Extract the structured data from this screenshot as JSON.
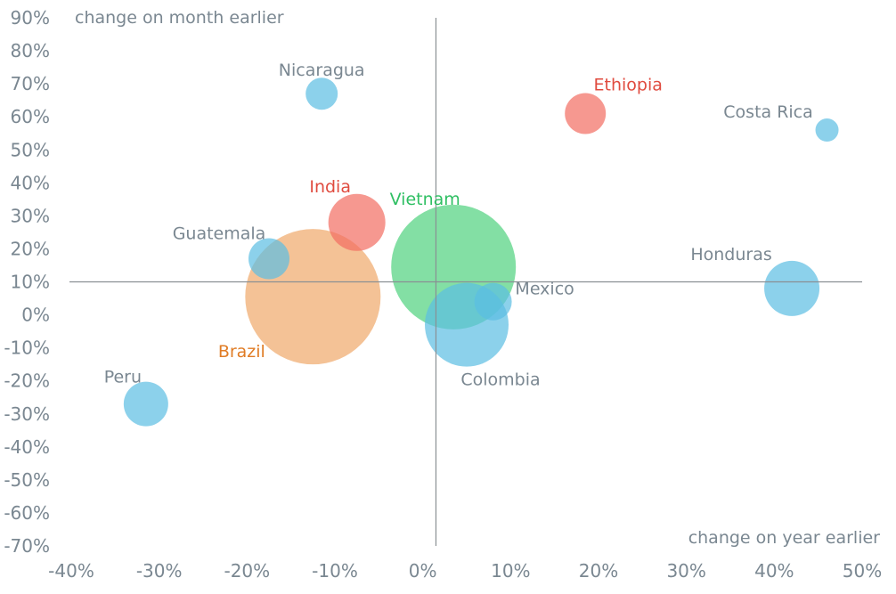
{
  "chart_data": {
    "type": "scatter",
    "title": "",
    "xlabel": "change on year earlier",
    "ylabel": "change on month earlier",
    "xlim": [
      -40,
      50
    ],
    "ylim": [
      -70,
      90
    ],
    "x_ticks": [
      -40,
      -30,
      -20,
      -10,
      0,
      10,
      20,
      30,
      40,
      50
    ],
    "y_ticks": [
      90,
      80,
      70,
      60,
      50,
      40,
      30,
      20,
      10,
      0,
      -10,
      -20,
      -30,
      -40,
      -50,
      -60,
      -70
    ],
    "tick_suffix": "%",
    "x_axis_line_at_y": 10,
    "y_axis_line_at_x": 1.5,
    "grid": false,
    "legend": "none",
    "colors": {
      "blue": "#5bbde2",
      "red": "#f26c61",
      "orange": "#f0a869",
      "green": "#4fd17e",
      "blue_text": "#7a8791",
      "red_text": "#e04b3f",
      "orange_text": "#e07c25",
      "green_text": "#2fbf63"
    },
    "points": [
      {
        "name": "Nicaragua",
        "x": -11.5,
        "y": 67,
        "size": 18,
        "color": "blue",
        "label_dx": 0,
        "label_dy": -20
      },
      {
        "name": "Ethiopia",
        "x": 18.5,
        "y": 61,
        "size": 23,
        "color": "red",
        "label_dx": 48,
        "label_dy": -26
      },
      {
        "name": "Costa Rica",
        "x": 46,
        "y": 56,
        "size": 13,
        "color": "blue",
        "label_dx": -66,
        "label_dy": -14
      },
      {
        "name": "India",
        "x": -7.5,
        "y": 28,
        "size": 32,
        "color": "red",
        "label_dx": -30,
        "label_dy": -34
      },
      {
        "name": "Vietnam",
        "x": 3.5,
        "y": 14.5,
        "size": 70,
        "color": "green",
        "label_dx": -32,
        "label_dy": -70
      },
      {
        "name": "Guatemala",
        "x": -17.5,
        "y": 17,
        "size": 23,
        "color": "blue",
        "label_dx": -56,
        "label_dy": -22
      },
      {
        "name": "Honduras",
        "x": 42,
        "y": 8,
        "size": 31,
        "color": "blue",
        "label_dx": -68,
        "label_dy": -32
      },
      {
        "name": "Brazil",
        "x": -12.5,
        "y": 5.5,
        "size": 76,
        "color": "orange",
        "label_dx": -80,
        "label_dy": 68
      },
      {
        "name": "Mexico",
        "x": 8,
        "y": 4,
        "size": 21,
        "color": "blue",
        "label_dx": 58,
        "label_dy": -8
      },
      {
        "name": "Colombia",
        "x": 5,
        "y": -3,
        "size": 47,
        "color": "blue",
        "label_dx": 38,
        "label_dy": 68
      },
      {
        "name": "Peru",
        "x": -31.5,
        "y": -27,
        "size": 25,
        "color": "blue",
        "label_dx": -26,
        "label_dy": -24
      }
    ]
  }
}
